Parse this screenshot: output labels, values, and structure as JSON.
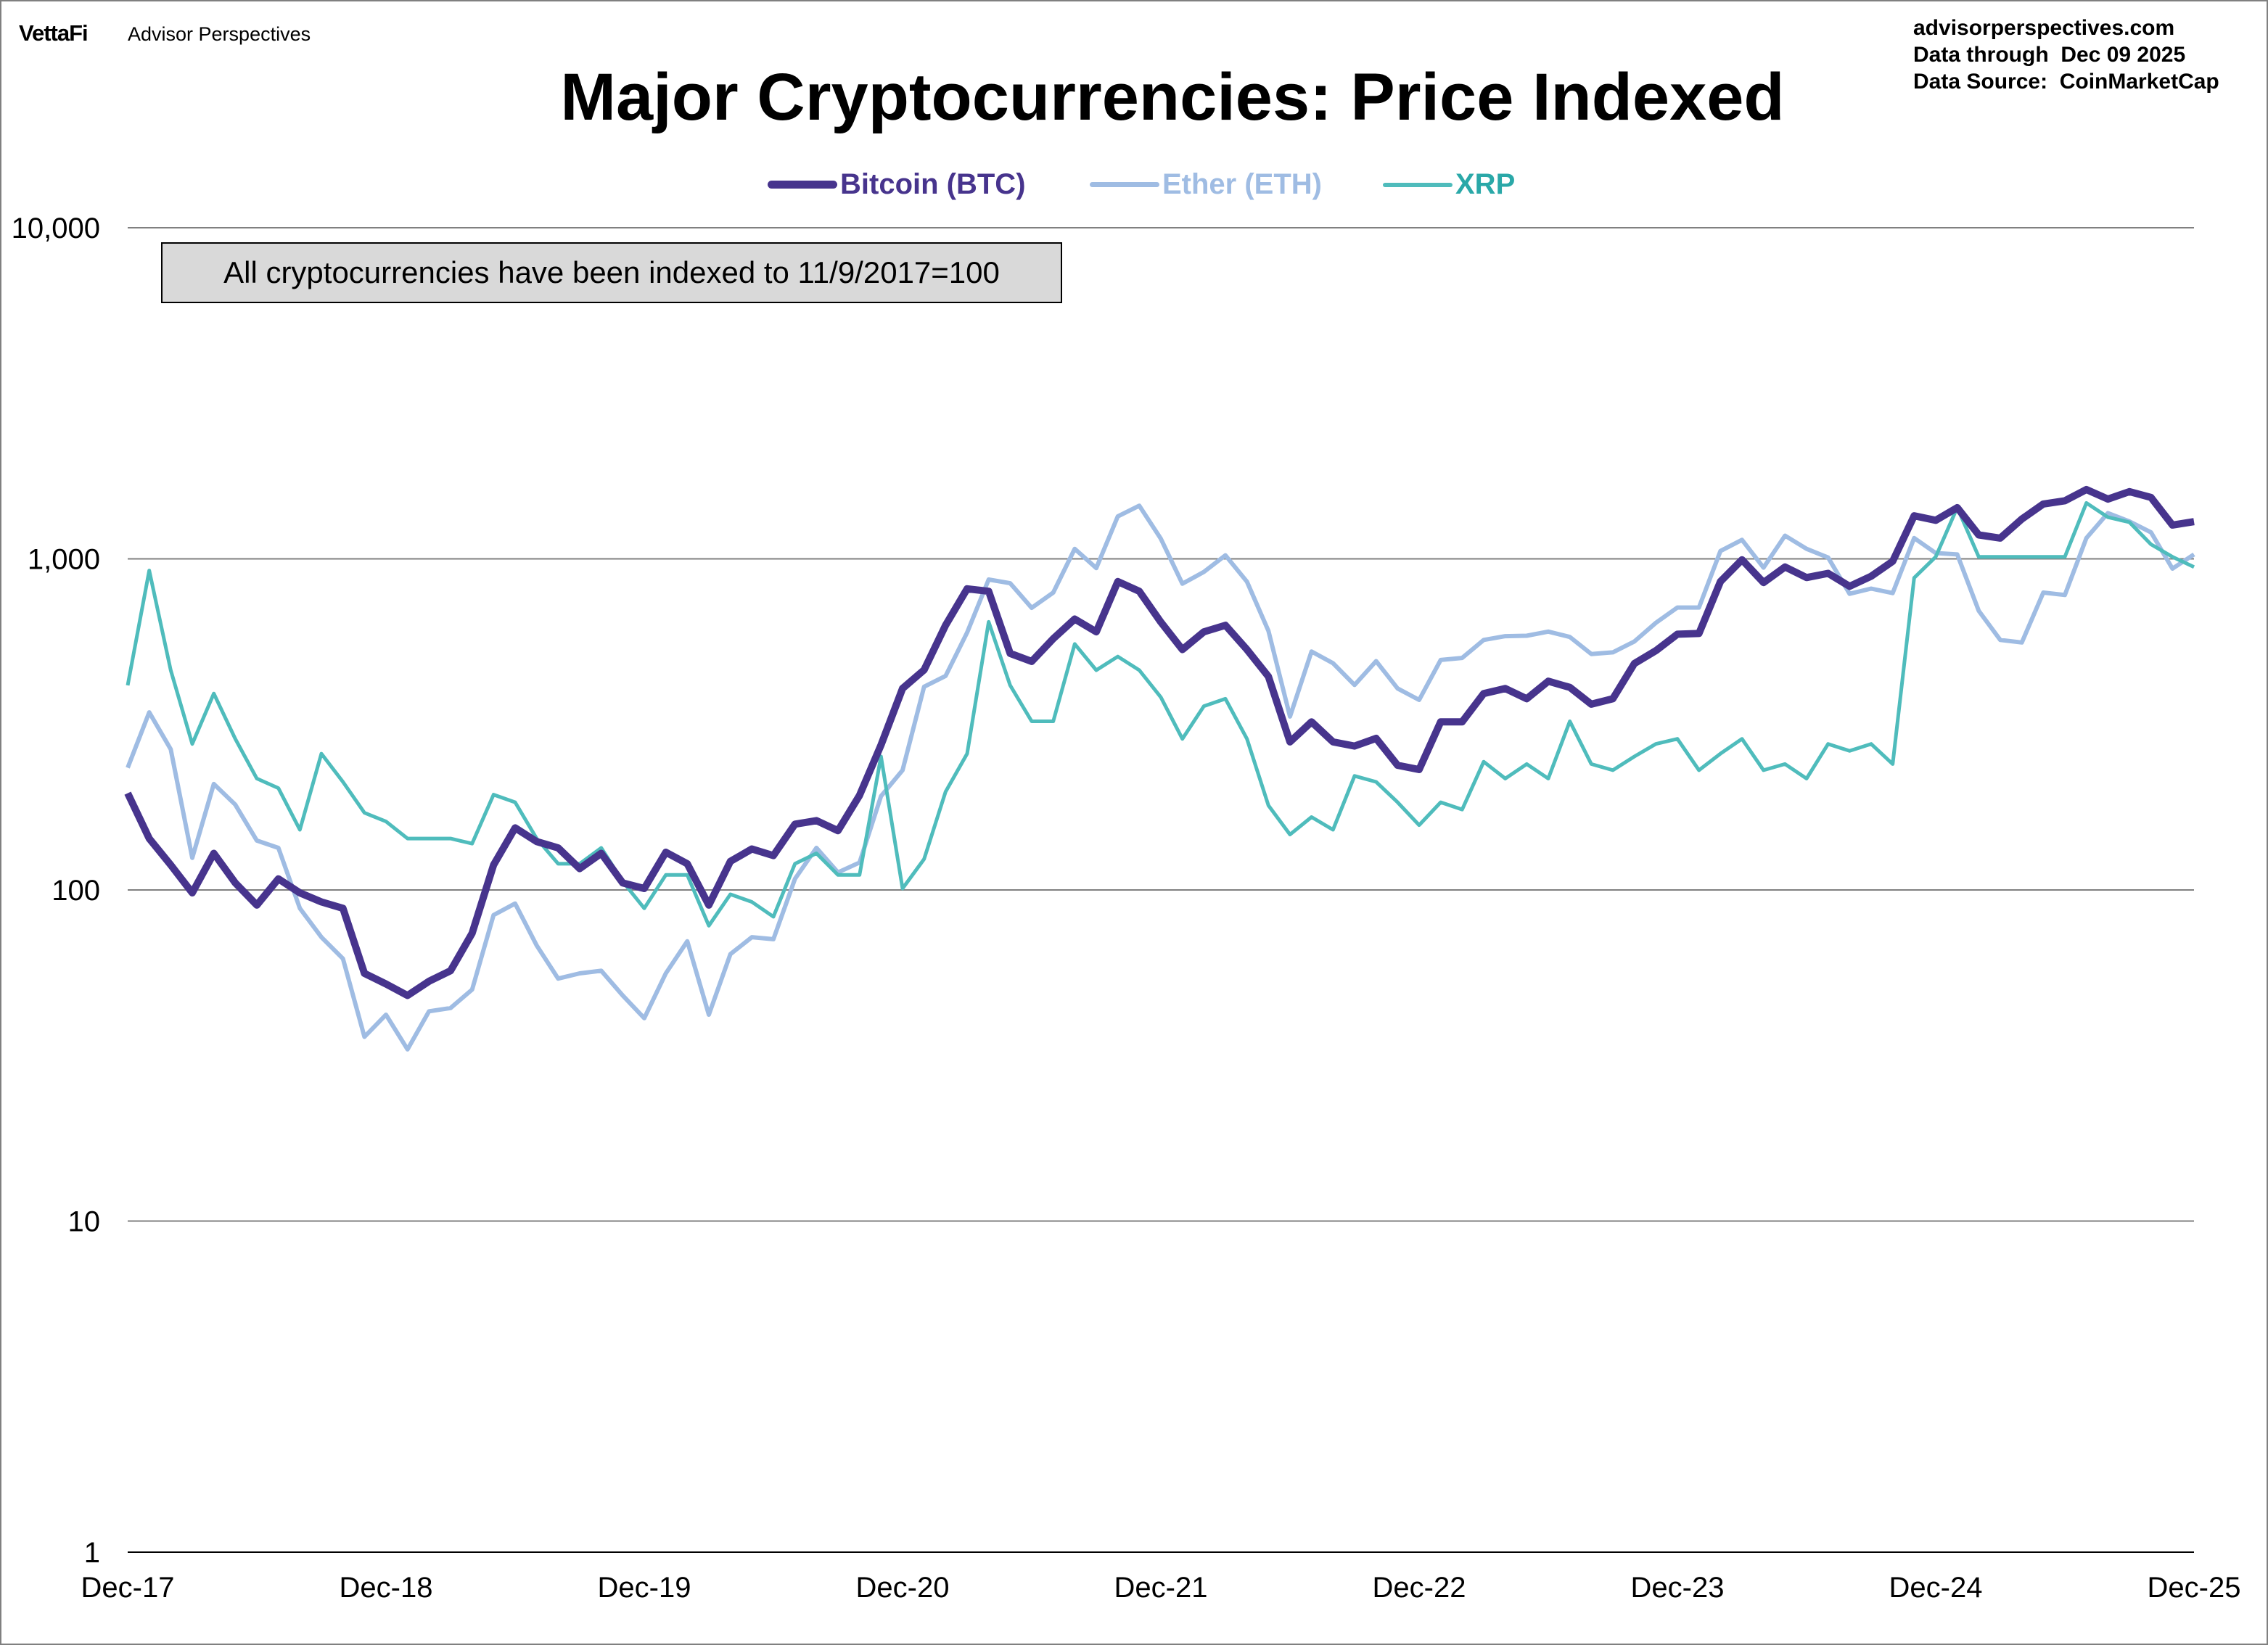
{
  "header": {
    "logo": "VettaFi",
    "brand": "Advisor Perspectives",
    "site": "advisorperspectives.com",
    "data_through": "Data through  Dec 09 2025",
    "source": "Data Source:  CoinMarketCap"
  },
  "chart_data": {
    "type": "line",
    "title": "Major Cryptocurrencies: Price Indexed",
    "annotation": "All cryptocurrencies have been indexed to 11/9/2017=100",
    "y_scale": "log",
    "ylim": [
      1,
      10000
    ],
    "y_ticks": [
      "1",
      "10",
      "100",
      "1,000",
      "10,000"
    ],
    "x_ticks": [
      "Dec-17",
      "Dec-18",
      "Dec-19",
      "Dec-20",
      "Dec-21",
      "Dec-22",
      "Dec-23",
      "Dec-24",
      "Dec-25"
    ],
    "xlim": [
      "2017-12",
      "2025-12"
    ],
    "grid": "horizontal",
    "legend_position": "top",
    "x": [
      "2017-12",
      "2018-01",
      "2018-02",
      "2018-03",
      "2018-04",
      "2018-05",
      "2018-06",
      "2018-07",
      "2018-08",
      "2018-09",
      "2018-10",
      "2018-11",
      "2018-12",
      "2019-01",
      "2019-02",
      "2019-03",
      "2019-04",
      "2019-05",
      "2019-06",
      "2019-07",
      "2019-08",
      "2019-09",
      "2019-10",
      "2019-11",
      "2019-12",
      "2020-01",
      "2020-02",
      "2020-03",
      "2020-04",
      "2020-05",
      "2020-06",
      "2020-07",
      "2020-08",
      "2020-09",
      "2020-10",
      "2020-11",
      "2020-12",
      "2021-01",
      "2021-02",
      "2021-03",
      "2021-04",
      "2021-05",
      "2021-06",
      "2021-07",
      "2021-08",
      "2021-09",
      "2021-10",
      "2021-11",
      "2021-12",
      "2022-01",
      "2022-02",
      "2022-03",
      "2022-04",
      "2022-05",
      "2022-06",
      "2022-07",
      "2022-08",
      "2022-09",
      "2022-10",
      "2022-11",
      "2022-12",
      "2023-01",
      "2023-02",
      "2023-03",
      "2023-04",
      "2023-05",
      "2023-06",
      "2023-07",
      "2023-08",
      "2023-09",
      "2023-10",
      "2023-11",
      "2023-12",
      "2024-01",
      "2024-02",
      "2024-03",
      "2024-04",
      "2024-05",
      "2024-06",
      "2024-07",
      "2024-08",
      "2024-09",
      "2024-10",
      "2024-11",
      "2024-12",
      "2025-01",
      "2025-02",
      "2025-03",
      "2025-04",
      "2025-05",
      "2025-06",
      "2025-07",
      "2025-08",
      "2025-09",
      "2025-10",
      "2025-11",
      "2025-12"
    ],
    "series": [
      {
        "name": "Bitcoin (BTC)",
        "color": "#47348d",
        "values": [
          196,
          143,
          119,
          98,
          129,
          105,
          90,
          108,
          98,
          92,
          88,
          56,
          52,
          48,
          53,
          57,
          74,
          119,
          154,
          140,
          134,
          116,
          129,
          105,
          101,
          130,
          120,
          90,
          122,
          133,
          127,
          158,
          162,
          151,
          193,
          274,
          406,
          462,
          630,
          812,
          798,
          518,
          490,
          574,
          658,
          602,
          854,
          798,
          644,
          532,
          602,
          630,
          532,
          441,
          280,
          322,
          280,
          272,
          287,
          238,
          231,
          322,
          322,
          392,
          406,
          378,
          427,
          409,
          364,
          378,
          483,
          528,
          592,
          595,
          854,
          994,
          848,
          945,
          878,
          904,
          826,
          886,
          983,
          1349,
          1307,
          1428,
          1181,
          1155,
          1319,
          1464,
          1498,
          1620,
          1515,
          1596,
          1533,
          1265,
          1295
        ]
      },
      {
        "name": "Ether (ETH)",
        "color": "#9fbce3",
        "values": [
          234,
          344,
          266,
          125,
          209,
          181,
          141,
          134,
          88,
          72,
          62,
          36,
          42,
          33,
          43,
          44,
          50,
          84,
          91,
          68,
          54,
          56,
          57,
          48,
          41,
          56,
          70,
          42,
          64,
          72,
          71,
          108,
          134,
          113,
          121,
          192,
          230,
          411,
          443,
          599,
          866,
          844,
          711,
          791,
          1072,
          938,
          1344,
          1447,
          1150,
          841,
          913,
          1025,
          853,
          606,
          334,
          525,
          484,
          416,
          491,
          406,
          375,
          495,
          502,
          569,
          584,
          586,
          603,
          581,
          516,
          522,
          563,
          641,
          713,
          713,
          1056,
          1141,
          941,
          1175,
          1072,
          1009,
          784,
          813,
          788,
          1156,
          1041,
          1031,
          697,
          569,
          559,
          791,
          778,
          1156,
          1375,
          1297,
          1203,
          934,
          1031
        ]
      },
      {
        "name": "XRP",
        "color": "#4fbcbc",
        "text_color": "#2aa8a8",
        "values": [
          415,
          922,
          461,
          276,
          392,
          286,
          217,
          203,
          152,
          258,
          212,
          171,
          161,
          143,
          143,
          143,
          138,
          194,
          184,
          143,
          120,
          120,
          134,
          106,
          88,
          111,
          111,
          78,
          97,
          92,
          83,
          120,
          129,
          111,
          111,
          253,
          101,
          124,
          198,
          258,
          645,
          415,
          323,
          323,
          553,
          461,
          507,
          461,
          382,
          286,
          359,
          378,
          286,
          180,
          147,
          166,
          152,
          221,
          212,
          184,
          157,
          184,
          175,
          244,
          217,
          240,
          217,
          323,
          240,
          230,
          253,
          276,
          286,
          230,
          258,
          286,
          230,
          240,
          217,
          276,
          263,
          276,
          240,
          876,
          1014,
          1429,
          1014,
          1014,
          1014,
          1014,
          1014,
          1475,
          1336,
          1290,
          1106,
          1014,
          945
        ]
      }
    ]
  }
}
